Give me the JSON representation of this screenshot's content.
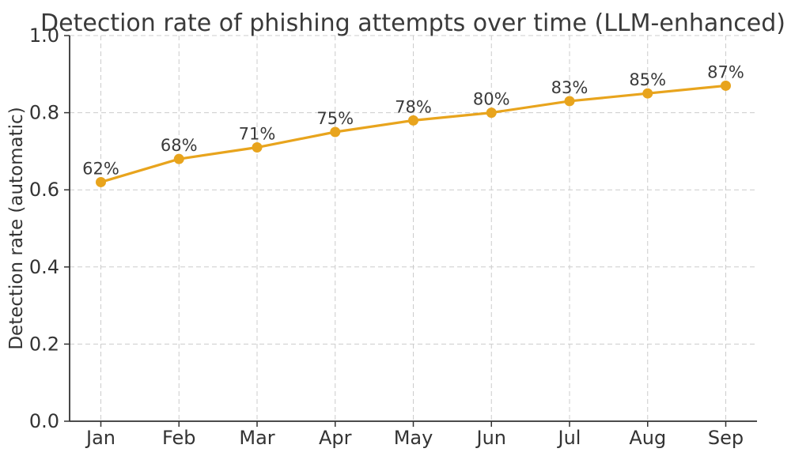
{
  "chart_data": {
    "type": "line",
    "title": "Detection rate of phishing attempts over time (LLM-enhanced)",
    "xlabel": "",
    "ylabel": "Detection rate (automatic)",
    "x_categories": [
      "Jan",
      "Feb",
      "Mar",
      "Apr",
      "May",
      "Jun",
      "Jul",
      "Aug",
      "Sep"
    ],
    "values": [
      0.62,
      0.68,
      0.71,
      0.75,
      0.78,
      0.8,
      0.83,
      0.85,
      0.87
    ],
    "point_labels": [
      "62%",
      "68%",
      "71%",
      "75%",
      "78%",
      "80%",
      "83%",
      "85%",
      "87%"
    ],
    "ylim": [
      0.0,
      1.0
    ],
    "ytick_labels": [
      "0.0",
      "0.2",
      "0.4",
      "0.6",
      "0.8",
      "1.0"
    ],
    "ytick_values": [
      0.0,
      0.2,
      0.4,
      0.6,
      0.8,
      1.0
    ],
    "grid": "dashed",
    "legend": "none",
    "colors": {
      "line": "#E8A41D",
      "marker": "#E8A41D",
      "grid": "#cccccc",
      "spine": "#333333",
      "text": "#333333",
      "title": "#3a3a3a",
      "background": "#ffffff"
    }
  }
}
